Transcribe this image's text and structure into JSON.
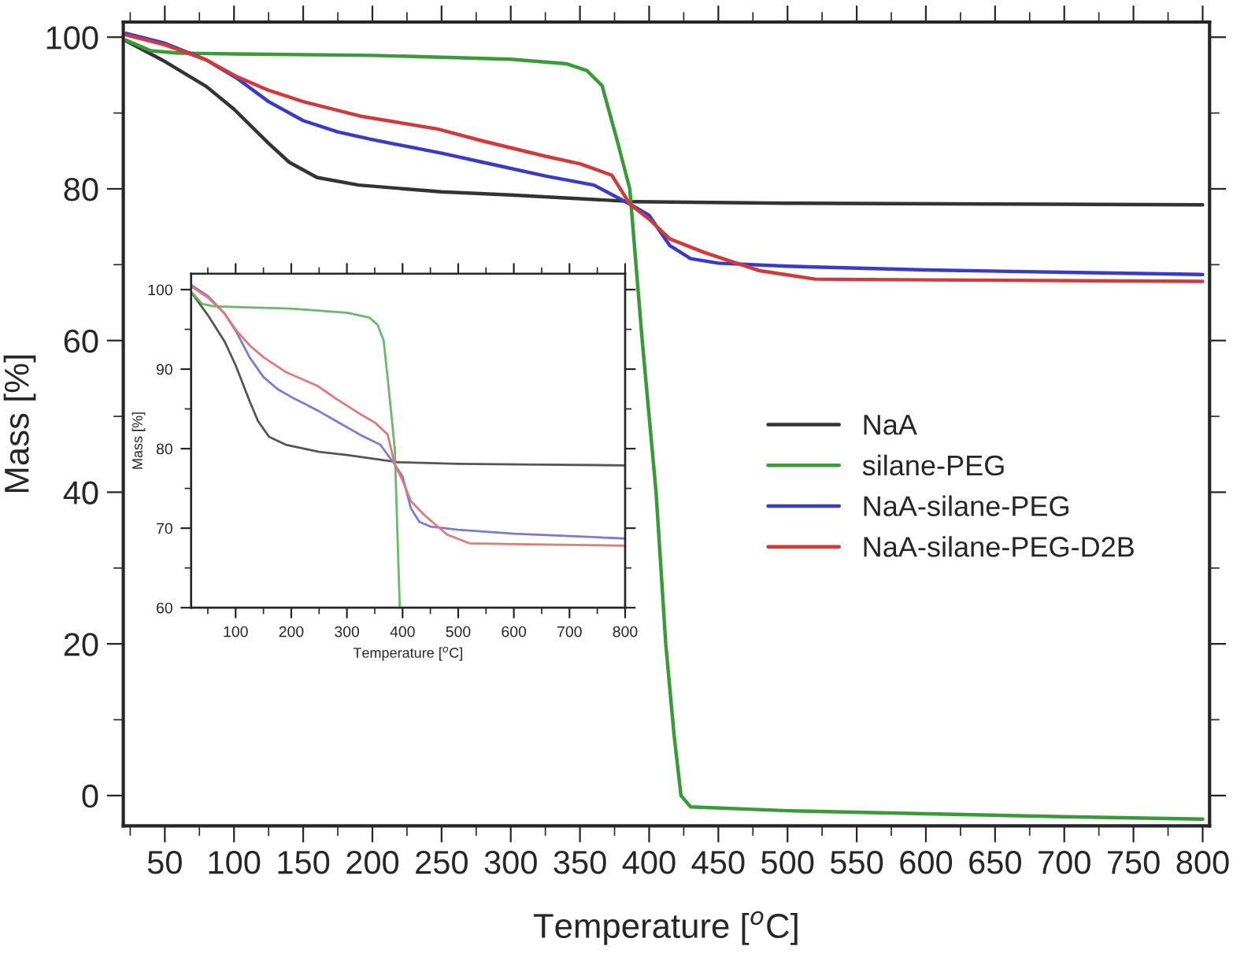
{
  "chart_data": [
    {
      "type": "line",
      "xlabel": "Temperature [$^{o}$C]",
      "ylabel": "Mass [%]",
      "xlim": [
        20,
        805
      ],
      "ylim": [
        -4,
        102
      ],
      "xticks": [
        50,
        100,
        150,
        200,
        250,
        300,
        350,
        400,
        450,
        500,
        550,
        600,
        650,
        700,
        750,
        800
      ],
      "yticks": [
        0,
        20,
        40,
        60,
        80,
        100
      ],
      "legend": "right",
      "grid": false,
      "series": [
        {
          "name": "NaA",
          "color": "#333333",
          "x": [
            22,
            50,
            80,
            100,
            125,
            140,
            160,
            190,
            250,
            300,
            390,
            500,
            650,
            800
          ],
          "values": [
            99.5,
            96.8,
            93.5,
            90.5,
            86,
            83.5,
            81.5,
            80.5,
            79.6,
            79.2,
            78.3,
            78.1,
            78,
            77.9
          ]
        },
        {
          "name": "silane-PEG",
          "color": "#3a9a3a",
          "x": [
            22,
            40,
            60,
            100,
            200,
            300,
            340,
            355,
            366,
            377,
            386,
            395,
            405,
            412,
            418,
            423,
            430,
            500,
            600,
            700,
            800
          ],
          "values": [
            99.6,
            98.2,
            97.9,
            97.8,
            97.6,
            97.1,
            96.5,
            95.6,
            93.6,
            86.3,
            80,
            60,
            40,
            20,
            8,
            0,
            -1.5,
            -2.0,
            -2.4,
            -2.8,
            -3.1
          ]
        },
        {
          "name": "NaA-silane-PEG",
          "color": "#3a3ac8",
          "x": [
            22,
            50,
            80,
            102,
            125,
            150,
            175,
            200,
            250,
            280,
            325,
            360,
            386,
            400,
            415,
            430,
            450,
            500,
            600,
            700,
            800
          ],
          "values": [
            100.5,
            99.2,
            97,
            94.6,
            91.5,
            89,
            87.5,
            86.5,
            84.7,
            83.5,
            81.7,
            80.5,
            78,
            76.5,
            72.5,
            70.8,
            70.2,
            69.8,
            69.3,
            69,
            68.7
          ]
        },
        {
          "name": "NaA-silane-PEG-D2B",
          "color": "#d03a3a",
          "x": [
            22,
            50,
            80,
            102,
            125,
            150,
            191,
            247,
            280,
            325,
            350,
            373,
            386,
            400,
            415,
            440,
            480,
            520,
            600,
            800
          ],
          "values": [
            100.3,
            99,
            97,
            94.8,
            93,
            91.5,
            89.6,
            87.9,
            86.3,
            84.3,
            83.3,
            81.8,
            78,
            76,
            73.4,
            71.6,
            69.2,
            68.1,
            68,
            67.8
          ]
        }
      ]
    },
    {
      "type": "line",
      "xlabel": "Temperature [$^{o}$C]",
      "ylabel": "Mass [%]",
      "xlim": [
        20,
        800
      ],
      "ylim": [
        60,
        102
      ],
      "xticks": [
        100,
        200,
        300,
        400,
        500,
        600,
        700,
        800
      ],
      "yticks": [
        60,
        70,
        80,
        90,
        100
      ],
      "grid": false,
      "series": [
        {
          "color": "#555555",
          "x": [
            22,
            50,
            80,
            100,
            125,
            140,
            160,
            190,
            250,
            300,
            390,
            500,
            650,
            800
          ],
          "values": [
            99.5,
            96.8,
            93.5,
            90.5,
            86,
            83.5,
            81.5,
            80.5,
            79.6,
            79.2,
            78.3,
            78.1,
            78,
            77.9
          ]
        },
        {
          "color": "#6ab86a",
          "x": [
            22,
            40,
            60,
            100,
            200,
            300,
            340,
            355,
            366,
            377,
            386,
            395
          ],
          "values": [
            99.6,
            98.2,
            97.9,
            97.8,
            97.6,
            97.1,
            96.5,
            95.6,
            93.6,
            86.3,
            80,
            60
          ]
        },
        {
          "color": "#7a7ad8",
          "x": [
            22,
            50,
            80,
            102,
            125,
            150,
            175,
            200,
            250,
            280,
            325,
            360,
            386,
            400,
            415,
            430,
            450,
            500,
            600,
            700,
            800
          ],
          "values": [
            100.5,
            99.2,
            97,
            94.6,
            91.5,
            89,
            87.5,
            86.5,
            84.7,
            83.5,
            81.7,
            80.5,
            78,
            76.5,
            72.5,
            70.8,
            70.2,
            69.8,
            69.3,
            69,
            68.7
          ]
        },
        {
          "color": "#e07a7a",
          "x": [
            22,
            50,
            80,
            102,
            125,
            150,
            191,
            247,
            280,
            325,
            350,
            373,
            386,
            400,
            415,
            440,
            480,
            520,
            600,
            800
          ],
          "values": [
            100.3,
            99,
            97,
            94.8,
            93,
            91.5,
            89.6,
            87.9,
            86.3,
            84.3,
            83.3,
            81.8,
            78,
            76,
            73.4,
            71.6,
            69.2,
            68.1,
            68,
            67.8
          ]
        }
      ]
    }
  ]
}
